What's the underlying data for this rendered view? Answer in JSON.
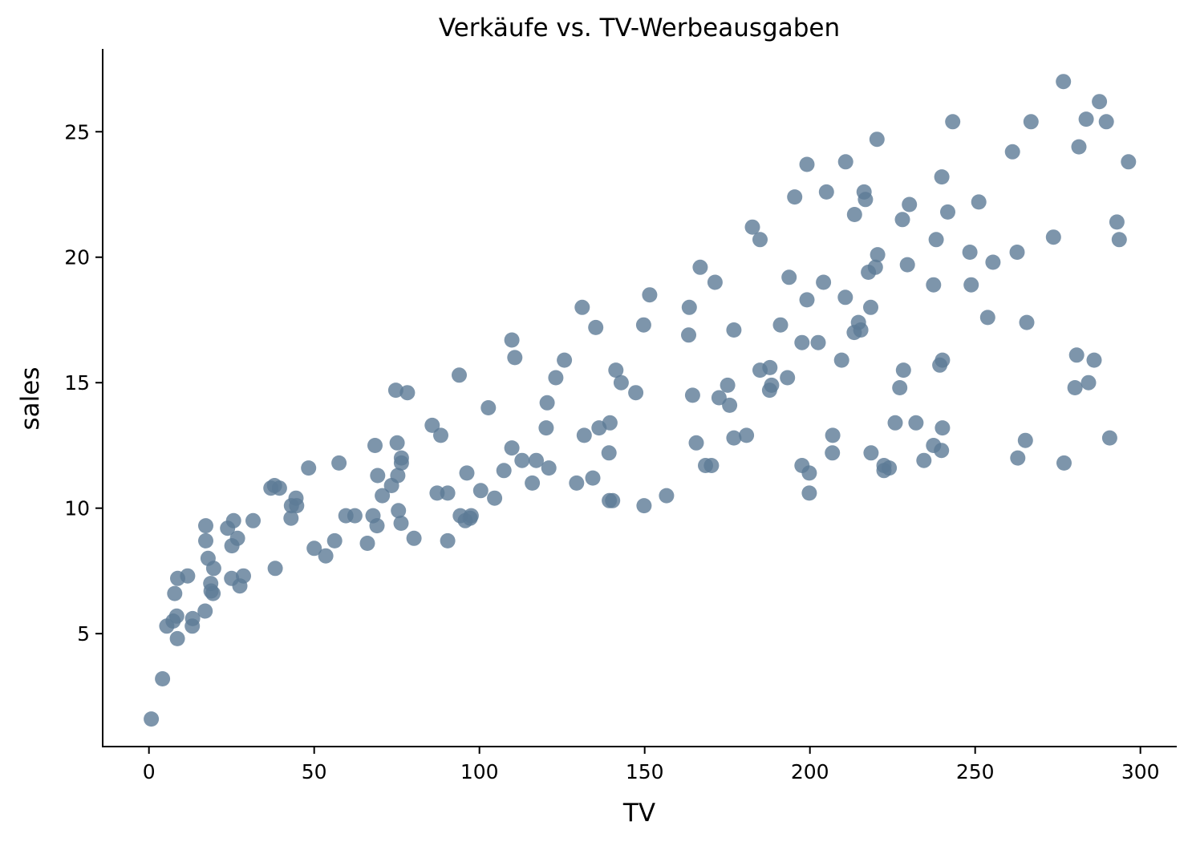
{
  "chart_data": {
    "type": "scatter",
    "title": "Verkäufe vs. TV-Werbeausgaben",
    "xlabel": "TV",
    "ylabel": "sales",
    "xlim": [
      -14,
      311
    ],
    "ylim": [
      0.5,
      28.3
    ],
    "xticks": [
      0,
      50,
      100,
      150,
      200,
      250,
      300
    ],
    "yticks": [
      5,
      10,
      15,
      20,
      25
    ],
    "grid": false,
    "point_color": "#5d7b96",
    "points": [
      [
        0.7,
        1.6
      ],
      [
        4.1,
        3.2
      ],
      [
        5.4,
        5.3
      ],
      [
        7.3,
        5.5
      ],
      [
        7.8,
        6.6
      ],
      [
        8.4,
        5.7
      ],
      [
        8.6,
        4.8
      ],
      [
        8.7,
        7.2
      ],
      [
        11.7,
        7.3
      ],
      [
        13.1,
        5.3
      ],
      [
        13.2,
        5.6
      ],
      [
        17.0,
        5.9
      ],
      [
        17.2,
        8.7
      ],
      [
        17.2,
        9.3
      ],
      [
        17.9,
        8.0
      ],
      [
        18.7,
        7.0
      ],
      [
        18.8,
        6.7
      ],
      [
        19.4,
        6.6
      ],
      [
        19.6,
        7.6
      ],
      [
        23.8,
        9.2
      ],
      [
        25.0,
        7.2
      ],
      [
        25.1,
        8.5
      ],
      [
        25.6,
        9.5
      ],
      [
        26.8,
        8.8
      ],
      [
        27.5,
        6.9
      ],
      [
        28.6,
        7.3
      ],
      [
        31.5,
        9.5
      ],
      [
        36.9,
        10.8
      ],
      [
        38.0,
        10.9
      ],
      [
        38.2,
        7.6
      ],
      [
        39.5,
        10.8
      ],
      [
        43.0,
        9.6
      ],
      [
        43.1,
        10.1
      ],
      [
        44.5,
        10.4
      ],
      [
        44.7,
        10.1
      ],
      [
        48.3,
        11.6
      ],
      [
        50.0,
        8.4
      ],
      [
        53.5,
        8.1
      ],
      [
        56.2,
        8.7
      ],
      [
        57.5,
        11.8
      ],
      [
        59.6,
        9.7
      ],
      [
        62.3,
        9.7
      ],
      [
        66.1,
        8.6
      ],
      [
        67.8,
        9.7
      ],
      [
        68.4,
        12.5
      ],
      [
        69.0,
        9.3
      ],
      [
        69.2,
        11.3
      ],
      [
        70.6,
        10.5
      ],
      [
        73.4,
        10.9
      ],
      [
        74.7,
        14.7
      ],
      [
        75.1,
        12.6
      ],
      [
        75.3,
        11.3
      ],
      [
        75.5,
        9.9
      ],
      [
        76.3,
        9.4
      ],
      [
        76.4,
        12.0
      ],
      [
        76.4,
        11.8
      ],
      [
        78.2,
        14.6
      ],
      [
        80.2,
        8.8
      ],
      [
        85.7,
        13.3
      ],
      [
        87.2,
        10.6
      ],
      [
        88.3,
        12.9
      ],
      [
        90.4,
        8.7
      ],
      [
        90.4,
        10.6
      ],
      [
        93.9,
        15.3
      ],
      [
        94.2,
        9.7
      ],
      [
        95.7,
        9.5
      ],
      [
        96.2,
        11.4
      ],
      [
        97.2,
        9.6
      ],
      [
        97.5,
        9.7
      ],
      [
        100.4,
        10.7
      ],
      [
        102.7,
        14.0
      ],
      [
        104.6,
        10.4
      ],
      [
        107.4,
        11.5
      ],
      [
        109.8,
        12.4
      ],
      [
        109.8,
        16.7
      ],
      [
        110.7,
        16.0
      ],
      [
        112.9,
        11.9
      ],
      [
        116.0,
        11.0
      ],
      [
        117.2,
        11.9
      ],
      [
        120.2,
        13.2
      ],
      [
        120.5,
        14.2
      ],
      [
        121.0,
        11.6
      ],
      [
        123.1,
        15.2
      ],
      [
        125.7,
        15.9
      ],
      [
        129.4,
        11.0
      ],
      [
        131.1,
        18.0
      ],
      [
        131.7,
        12.9
      ],
      [
        134.3,
        11.2
      ],
      [
        135.2,
        17.2
      ],
      [
        136.2,
        13.2
      ],
      [
        139.2,
        12.2
      ],
      [
        139.3,
        10.3
      ],
      [
        139.5,
        13.4
      ],
      [
        140.3,
        10.3
      ],
      [
        141.3,
        15.5
      ],
      [
        142.9,
        15.0
      ],
      [
        147.3,
        14.6
      ],
      [
        149.7,
        17.3
      ],
      [
        149.8,
        10.1
      ],
      [
        151.5,
        18.5
      ],
      [
        156.6,
        10.5
      ],
      [
        163.3,
        16.9
      ],
      [
        163.5,
        18.0
      ],
      [
        164.5,
        14.5
      ],
      [
        165.6,
        12.6
      ],
      [
        166.8,
        19.6
      ],
      [
        168.4,
        11.7
      ],
      [
        170.2,
        11.7
      ],
      [
        171.3,
        19.0
      ],
      [
        172.5,
        14.4
      ],
      [
        175.1,
        14.9
      ],
      [
        175.7,
        14.1
      ],
      [
        177.0,
        12.8
      ],
      [
        177.0,
        17.1
      ],
      [
        180.8,
        12.9
      ],
      [
        182.6,
        21.2
      ],
      [
        184.9,
        15.5
      ],
      [
        184.9,
        20.7
      ],
      [
        187.8,
        14.7
      ],
      [
        187.9,
        15.6
      ],
      [
        188.4,
        14.9
      ],
      [
        191.1,
        17.3
      ],
      [
        193.2,
        15.2
      ],
      [
        193.7,
        19.2
      ],
      [
        195.4,
        22.4
      ],
      [
        197.6,
        11.7
      ],
      [
        197.6,
        16.6
      ],
      [
        199.1,
        18.3
      ],
      [
        199.1,
        23.7
      ],
      [
        199.8,
        10.6
      ],
      [
        199.8,
        11.4
      ],
      [
        202.5,
        16.6
      ],
      [
        204.1,
        19.0
      ],
      [
        205.0,
        22.6
      ],
      [
        206.8,
        12.2
      ],
      [
        206.9,
        12.9
      ],
      [
        209.6,
        15.9
      ],
      [
        210.7,
        18.4
      ],
      [
        210.8,
        23.8
      ],
      [
        213.4,
        17.0
      ],
      [
        213.5,
        21.7
      ],
      [
        214.7,
        17.4
      ],
      [
        215.4,
        17.1
      ],
      [
        216.4,
        22.6
      ],
      [
        216.8,
        22.3
      ],
      [
        217.7,
        19.4
      ],
      [
        218.4,
        18.0
      ],
      [
        218.5,
        12.2
      ],
      [
        219.8,
        19.6
      ],
      [
        220.3,
        24.7
      ],
      [
        220.5,
        20.1
      ],
      [
        222.4,
        11.5
      ],
      [
        222.4,
        11.7
      ],
      [
        224.0,
        11.6
      ],
      [
        225.8,
        13.4
      ],
      [
        227.2,
        14.8
      ],
      [
        228.0,
        21.5
      ],
      [
        228.3,
        15.5
      ],
      [
        229.5,
        19.7
      ],
      [
        230.1,
        22.1
      ],
      [
        232.1,
        13.4
      ],
      [
        234.5,
        11.9
      ],
      [
        237.4,
        12.5
      ],
      [
        237.4,
        18.9
      ],
      [
        238.2,
        20.7
      ],
      [
        239.3,
        15.7
      ],
      [
        239.8,
        12.3
      ],
      [
        239.9,
        23.2
      ],
      [
        240.1,
        13.2
      ],
      [
        240.1,
        15.9
      ],
      [
        241.7,
        21.8
      ],
      [
        243.2,
        25.4
      ],
      [
        248.4,
        20.2
      ],
      [
        248.8,
        18.9
      ],
      [
        251.1,
        22.2
      ],
      [
        253.8,
        17.6
      ],
      [
        255.4,
        19.8
      ],
      [
        261.3,
        24.2
      ],
      [
        262.7,
        20.2
      ],
      [
        262.9,
        12.0
      ],
      [
        265.2,
        12.7
      ],
      [
        265.6,
        17.4
      ],
      [
        266.9,
        25.4
      ],
      [
        273.7,
        20.8
      ],
      [
        276.7,
        27.0
      ],
      [
        276.9,
        11.8
      ],
      [
        280.2,
        14.8
      ],
      [
        280.7,
        16.1
      ],
      [
        281.4,
        24.4
      ],
      [
        283.6,
        25.5
      ],
      [
        284.3,
        15.0
      ],
      [
        286.0,
        15.9
      ],
      [
        287.6,
        26.2
      ],
      [
        289.7,
        25.4
      ],
      [
        290.7,
        12.8
      ],
      [
        292.9,
        21.4
      ],
      [
        293.6,
        20.7
      ],
      [
        296.4,
        23.8
      ]
    ]
  }
}
